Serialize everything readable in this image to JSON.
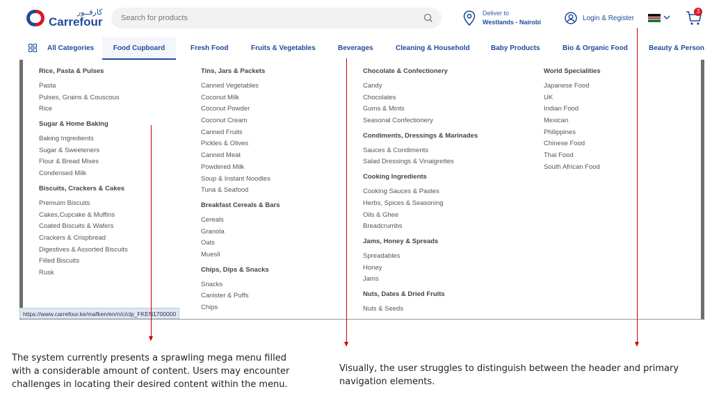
{
  "header": {
    "logo_arabic": "كارفــور",
    "logo_text": "Carrefour",
    "search_placeholder": "Search for products",
    "deliver_label": "Deliver to",
    "deliver_location": "Westlands - Nairobi",
    "login_label": "Login & Register",
    "cart_count": "3"
  },
  "nav": {
    "all_categories": "All Categories",
    "items": [
      "Food Cupboard",
      "Fresh Food",
      "Fruits & Vegetables",
      "Beverages",
      "Cleaning & Household",
      "Baby Products",
      "Bio & Organic Food",
      "Beauty & Personal Care"
    ],
    "active_index": 0
  },
  "mega_menu": {
    "columns": [
      {
        "sections": [
          {
            "title": "Rice, Pasta & Pulses",
            "links": [
              "Pasta",
              "Pulses, Grains & Couscous",
              "Rice"
            ]
          },
          {
            "title": "Sugar & Home Baking",
            "links": [
              "Baking Ingredients",
              "Sugar & Sweeteners",
              "Flour & Bread Mixes",
              "Condensed Milk"
            ]
          },
          {
            "title": "Biscuits, Crackers & Cakes",
            "links": [
              "Premuim Biscuits",
              "Cakes,Cupcake & Muffins",
              "Coated Biscuits & Wafers",
              "Crackers & Crispbread",
              "Digestives & Assorted Biscuits",
              "Filled Biscuits",
              "Rusk"
            ]
          }
        ]
      },
      {
        "sections": [
          {
            "title": "Tins, Jars & Packets",
            "links": [
              "Canned Vegetables",
              "Coconut Milk",
              "Coconut Powder",
              "Coconut Cream",
              "Canned Fruits",
              "Pickles & Olives",
              "Canned Meat",
              "Powdered Milk",
              "Soup & Instant Noodles",
              "Tuna & Seafood"
            ]
          },
          {
            "title": "Breakfast Cereals & Bars",
            "links": [
              "Cereals",
              "Granola",
              "Oats",
              "Muesli"
            ]
          },
          {
            "title": "Chips, Dips & Snacks",
            "links": [
              "Snacks",
              "Canister & Puffs",
              "Chips"
            ]
          }
        ]
      },
      {
        "sections": [
          {
            "title": "Chocolate & Confectionery",
            "links": [
              "Candy",
              "Chocolates",
              "Gums & Mints",
              "Seasonal Confectionery"
            ]
          },
          {
            "title": "Condiments, Dressings & Marinades",
            "links": [
              "Sauces & Condiments",
              "Salad Dressings & Vinaigrettes"
            ]
          },
          {
            "title": "Cooking Ingredients",
            "links": [
              "Cooking Sauces & Pastes",
              "Herbs, Spices & Seasoning",
              "Oils & Ghee",
              "Breadcrumbs"
            ]
          },
          {
            "title": "Jams, Honey & Spreads",
            "links": [
              "Spreadables",
              "Honey",
              "Jams"
            ]
          },
          {
            "title": "Nuts, Dates & Dried Fruits",
            "links": [
              "Nuts & Seeds"
            ]
          }
        ]
      },
      {
        "sections": [
          {
            "title": "World Specialities",
            "links": [
              "Japanese Food",
              "UK",
              "Indian Food",
              "Mexican",
              "Philippines",
              "Chinese Food",
              "Thai Food",
              "South African Food"
            ]
          }
        ]
      }
    ]
  },
  "status_url": "https://www.carrefour.ke/mafken/en/n/c/clp_FKEN1700000",
  "annotations": {
    "left_note": "The system currently presents a sprawling mega menu filled with a considerable amount of content. Users may encounter challenges in locating their desired content within the menu.",
    "right_note": "Visually, the user struggles to distinguish between the header and primary navigation elements."
  },
  "colors": {
    "brand_blue": "#1e4c9a",
    "brand_red": "#d6182a",
    "annotation_red": "#cc0000",
    "menu_border": "#6e6e6e"
  },
  "icons": {
    "logo": "carrefour-logo-icon",
    "search": "search-icon",
    "location": "pin-icon",
    "user": "user-icon",
    "flag": "kenya-flag-icon",
    "dropdown": "chevron-down-icon",
    "cart": "cart-icon",
    "categories": "grid-icon"
  }
}
